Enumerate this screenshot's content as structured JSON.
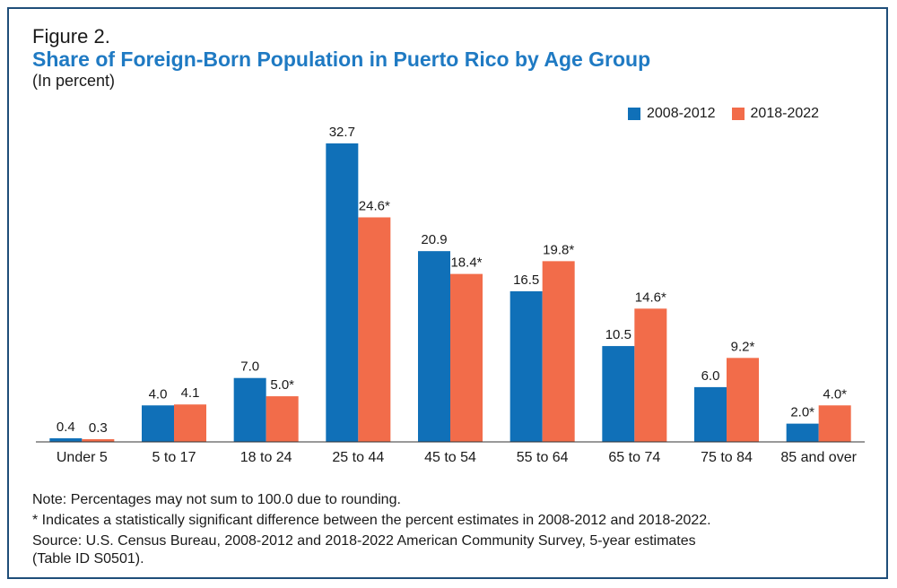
{
  "figure_label": "Figure 2.",
  "notes": {
    "note": "Note: Percentages may not sum to 100.0 due to rounding.",
    "significance": "* Indicates a statistically significant difference between the percent estimates in 2008-2012 and 2018-2022.",
    "source_line1": "Source: U.S. Census Bureau, 2008-2012 and 2018-2022 American Community Survey, 5-year estimates",
    "source_line2": "(Table ID S0501)."
  },
  "colors": {
    "series1": "#1070b8",
    "series2": "#f26c4a",
    "axis": "#333333",
    "border": "#1f4e79",
    "title": "#1f7ac3"
  },
  "chart_data": {
    "type": "bar",
    "title": "Share of Foreign-Born Population in Puerto Rico by Age Group",
    "subtitle": "(In percent)",
    "xlabel": "",
    "ylabel": "",
    "ylim": [
      0,
      32.7
    ],
    "grid": false,
    "legend_position": "top-right",
    "categories": [
      "Under 5",
      "5 to 17",
      "18 to 24",
      "25 to 44",
      "45 to 54",
      "55 to 64",
      "65 to 74",
      "75 to 84",
      "85 and over"
    ],
    "series": [
      {
        "name": "2008-2012",
        "values": [
          0.4,
          4.0,
          7.0,
          32.7,
          20.9,
          16.5,
          10.5,
          6.0,
          2.0
        ],
        "labels": [
          "0.4",
          "4.0",
          "7.0",
          "32.7",
          "20.9",
          "16.5",
          "10.5",
          "6.0",
          "2.0*"
        ]
      },
      {
        "name": "2018-2022",
        "values": [
          0.3,
          4.1,
          5.0,
          24.6,
          18.4,
          19.8,
          14.6,
          9.2,
          4.0
        ],
        "labels": [
          "0.3",
          "4.1",
          "5.0*",
          "24.6*",
          "18.4*",
          "19.8*",
          "14.6*",
          "9.2*",
          "4.0*"
        ]
      }
    ]
  }
}
